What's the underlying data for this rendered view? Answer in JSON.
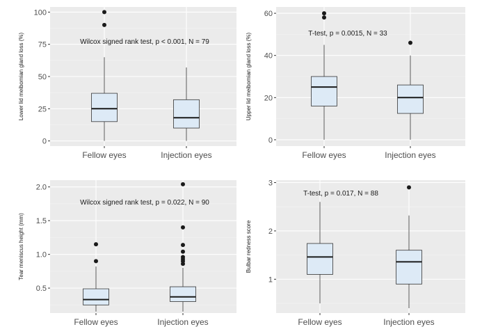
{
  "chart_data": [
    {
      "type": "box",
      "categories": [
        "Fellow eyes",
        "Injection eyes"
      ],
      "ylabel": "Lower lid meibomian gland loss (%)",
      "ylim": [
        -4,
        104
      ],
      "yticks": [
        0,
        25,
        50,
        75,
        100
      ],
      "yticklabels": [
        "0",
        "25",
        "50",
        "75",
        "100"
      ],
      "annotation": "Wilcox signed rank test, p <  0.001, N = 79",
      "boxes": [
        {
          "category": "Fellow eyes",
          "min": 0,
          "q1": 15,
          "median": 25,
          "q3": 37,
          "max": 65,
          "outliers": [
            90,
            100
          ]
        },
        {
          "category": "Injection eyes",
          "min": 0,
          "q1": 10,
          "median": 18,
          "q3": 32,
          "max": 57,
          "outliers": []
        }
      ]
    },
    {
      "type": "box",
      "categories": [
        "Fellow eyes",
        "Injection eyes"
      ],
      "ylabel": "Upper lid meibomian gland loss (%)",
      "ylim": [
        -3,
        63
      ],
      "yticks": [
        0,
        20,
        40,
        60
      ],
      "yticklabels": [
        "0",
        "20",
        "40",
        "60"
      ],
      "annotation": "T-test, p = 0.0015, N = 33",
      "boxes": [
        {
          "category": "Fellow eyes",
          "min": 0,
          "q1": 16,
          "median": 25,
          "q3": 30,
          "max": 45,
          "outliers": [
            58,
            60
          ]
        },
        {
          "category": "Injection eyes",
          "min": 0,
          "q1": 12.5,
          "median": 20,
          "q3": 26,
          "max": 40,
          "outliers": [
            46
          ]
        }
      ]
    },
    {
      "type": "box",
      "categories": [
        "Fellow eyes",
        "Injection eyes"
      ],
      "ylabel": "Tear meniscus height (mm)",
      "ylim": [
        0.13,
        2.1
      ],
      "yticks": [
        0.5,
        1.0,
        1.5,
        2.0
      ],
      "yticklabels": [
        "0.5",
        "1.0",
        "1.5",
        "2.0"
      ],
      "annotation": "Wilcox signed rank test, p = 0.022, N = 90",
      "boxes": [
        {
          "category": "Fellow eyes",
          "min": 0.15,
          "q1": 0.25,
          "median": 0.33,
          "q3": 0.49,
          "max": 0.82,
          "outliers": [
            0.9,
            1.15
          ]
        },
        {
          "category": "Injection eyes",
          "min": 0.15,
          "q1": 0.3,
          "median": 0.37,
          "q3": 0.52,
          "max": 0.8,
          "outliers": [
            0.86,
            0.9,
            0.93,
            0.96,
            1.04,
            1.14,
            1.4,
            2.04
          ]
        }
      ]
    },
    {
      "type": "box",
      "categories": [
        "Fellow eyes",
        "Injection eyes"
      ],
      "ylabel": "Bulbar redness score",
      "ylim": [
        0.3,
        3.05
      ],
      "yticks": [
        1,
        2,
        3
      ],
      "yticklabels": [
        "1",
        "2",
        "3"
      ],
      "annotation": "T-test, p = 0.017, N = 88",
      "boxes": [
        {
          "category": "Fellow eyes",
          "min": 0.5,
          "q1": 1.1,
          "median": 1.46,
          "q3": 1.74,
          "max": 2.6,
          "outliers": []
        },
        {
          "category": "Injection eyes",
          "min": 0.4,
          "q1": 0.9,
          "median": 1.36,
          "q3": 1.6,
          "max": 2.32,
          "outliers": [
            2.9
          ]
        }
      ]
    }
  ]
}
